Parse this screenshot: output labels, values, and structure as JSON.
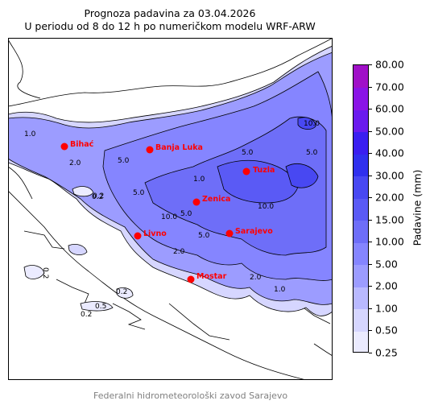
{
  "title": "Prognoza padavina za 03.04.2026",
  "subtitle": "U periodu od 8 do 12 h po numeričkom modelu WRF-ARW",
  "footer": "Federalni hidrometeorološki zavod Sarajevo",
  "colorbar": {
    "title": "Padavine (mm)",
    "levels": [
      "0.25",
      "0.50",
      "1.00",
      "2.00",
      "5.00",
      "10.00",
      "15.00",
      "20.00",
      "30.00",
      "40.00",
      "50.00",
      "60.00",
      "70.00",
      "80.00"
    ],
    "colors": [
      "#ebebff",
      "#d6d6ff",
      "#b9b9ff",
      "#9c9cff",
      "#8585ff",
      "#6e6ef8",
      "#5a5af5",
      "#4848f2",
      "#3030ee",
      "#3a1ef0",
      "#6a1aee",
      "#8a14e6",
      "#a010c8"
    ]
  },
  "cities": [
    {
      "name": "Bihać"
    },
    {
      "name": "Banja Luka"
    },
    {
      "name": "Tuzla"
    },
    {
      "name": "Zenica"
    },
    {
      "name": "Livno"
    },
    {
      "name": "Sarajevo"
    },
    {
      "name": "Mostar"
    }
  ],
  "contour_labels": [
    "0.2",
    "1.0",
    "2.0",
    "5.0",
    "5.0",
    "5.0",
    "5.0",
    "10.0",
    "10.0",
    "10.0",
    "1.0",
    "5.0",
    "2.0",
    "1.0",
    "0.2",
    "0.2",
    "0.2",
    "0.5",
    "0.2",
    "5.0",
    "2.0"
  ]
}
